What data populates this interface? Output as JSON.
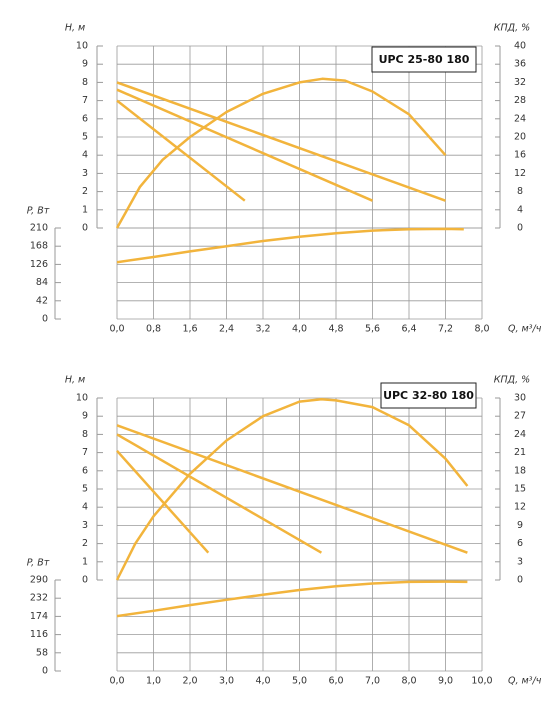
{
  "chart_data": [
    {
      "type": "line",
      "title": "UPC 25-80 180",
      "xlabel": "Q, м³/ч",
      "ylabel": "H, м",
      "y2label": "КПД, %",
      "y3label": "P, Вт",
      "xlim": [
        0,
        8
      ],
      "xticks": [
        {
          "value": 0,
          "label": "0,0"
        },
        {
          "value": 0.8,
          "label": "0,8"
        },
        {
          "value": 1.6,
          "label": "1,6"
        },
        {
          "value": 2.4,
          "label": "2,4"
        },
        {
          "value": 3.2,
          "label": "3,2"
        },
        {
          "value": 4,
          "label": "4,0"
        },
        {
          "value": 4.8,
          "label": "4,8"
        },
        {
          "value": 5.6,
          "label": "5,6"
        },
        {
          "value": 6.4,
          "label": "6,4"
        },
        {
          "value": 7.2,
          "label": "7,2"
        },
        {
          "value": 8,
          "label": "8,0"
        }
      ],
      "ylim": [
        0,
        10
      ],
      "yticks": [
        0,
        1,
        2,
        3,
        4,
        5,
        6,
        7,
        8,
        9,
        10
      ],
      "y2lim": [
        0,
        40
      ],
      "y2ticks": [
        0,
        4,
        8,
        12,
        16,
        20,
        24,
        28,
        32,
        36,
        40
      ],
      "y3lim": [
        0,
        210
      ],
      "y3ticks": [
        0,
        42,
        84,
        126,
        168,
        210
      ],
      "series": [
        {
          "color": "#f2b43c",
          "axis": "y",
          "x": [
            0,
            7.2
          ],
          "values": [
            8.0,
            1.5
          ]
        },
        {
          "color": "#f2b43c",
          "axis": "y",
          "x": [
            0,
            5.6
          ],
          "values": [
            7.6,
            1.5
          ]
        },
        {
          "color": "#f2b43c",
          "axis": "y",
          "x": [
            0,
            2.8
          ],
          "values": [
            7.0,
            1.5
          ]
        },
        {
          "color": "#f2b43c",
          "axis": "y2",
          "x": [
            0,
            0.5,
            1,
            1.6,
            2.4,
            3.2,
            4,
            4.5,
            5,
            5.6,
            6.4,
            7.2
          ],
          "values": [
            0,
            9,
            15,
            20,
            25.5,
            29.5,
            32,
            32.8,
            32.4,
            30,
            25,
            16
          ]
        },
        {
          "color": "#f2b43c",
          "axis": "y3",
          "x": [
            0,
            0.8,
            1.6,
            2.4,
            3.2,
            4,
            4.8,
            5.6,
            6.4,
            7.2,
            7.6
          ],
          "values": [
            131,
            143,
            156,
            168,
            180,
            190,
            198,
            204,
            207,
            208,
            207
          ]
        }
      ]
    },
    {
      "type": "line",
      "title": "UPC 32-80 180",
      "xlabel": "Q, м³/ч",
      "ylabel": "H, м",
      "y2label": "КПД, %",
      "y3label": "P, Вт",
      "xlim": [
        0,
        10
      ],
      "xticks": [
        {
          "value": 0,
          "label": "0,0"
        },
        {
          "value": 1,
          "label": "1,0"
        },
        {
          "value": 2,
          "label": "2,0"
        },
        {
          "value": 3,
          "label": "3,0"
        },
        {
          "value": 4,
          "label": "4,0"
        },
        {
          "value": 5,
          "label": "5,0"
        },
        {
          "value": 6,
          "label": "6,0"
        },
        {
          "value": 7,
          "label": "7,0"
        },
        {
          "value": 8,
          "label": "8,0"
        },
        {
          "value": 9,
          "label": "9,0"
        },
        {
          "value": 10,
          "label": "10,0"
        }
      ],
      "ylim": [
        0,
        10
      ],
      "yticks": [
        0,
        1,
        2,
        3,
        4,
        5,
        6,
        7,
        8,
        9,
        10
      ],
      "y2lim": [
        0,
        30
      ],
      "y2ticks": [
        0,
        3,
        6,
        9,
        12,
        15,
        18,
        21,
        24,
        27,
        30
      ],
      "y3lim": [
        0,
        290
      ],
      "y3ticks": [
        0,
        58,
        116,
        174,
        232,
        290
      ],
      "series": [
        {
          "color": "#f2b43c",
          "axis": "y",
          "x": [
            0,
            9.6
          ],
          "values": [
            8.5,
            1.5
          ]
        },
        {
          "color": "#f2b43c",
          "axis": "y",
          "x": [
            0,
            5.6
          ],
          "values": [
            8.0,
            1.5
          ]
        },
        {
          "color": "#f2b43c",
          "axis": "y",
          "x": [
            0,
            2.5
          ],
          "values": [
            7.1,
            1.5
          ]
        },
        {
          "color": "#f2b43c",
          "axis": "y2",
          "x": [
            0,
            0.5,
            1,
            2,
            3,
            4,
            5,
            5.6,
            6,
            7,
            8,
            9,
            9.6
          ],
          "values": [
            0,
            6,
            10.5,
            17.5,
            23,
            27,
            29.4,
            29.8,
            29.6,
            28.5,
            25.5,
            20,
            15.5
          ]
        },
        {
          "color": "#f2b43c",
          "axis": "y3",
          "x": [
            0,
            1,
            2,
            3,
            4,
            5,
            6,
            7,
            8,
            9,
            9.6
          ],
          "values": [
            175,
            192,
            210,
            227,
            243,
            258,
            270,
            279,
            284,
            285,
            284
          ]
        }
      ]
    }
  ]
}
